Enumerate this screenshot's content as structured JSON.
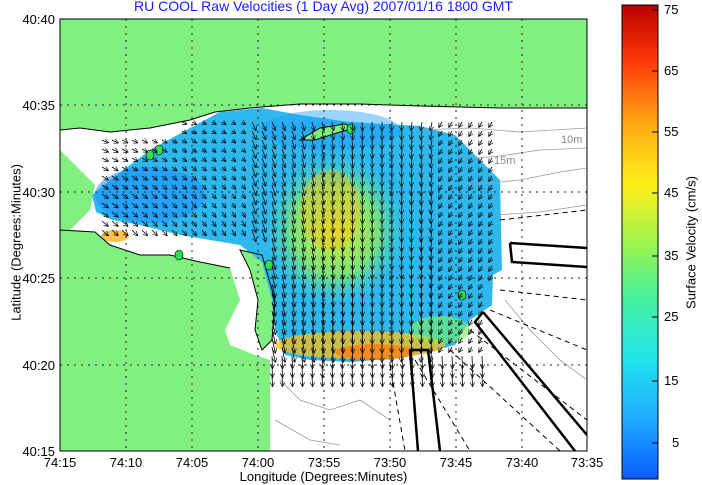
{
  "title": "RU COOL Raw Velocities (1 Day Avg) 2007/01/16 1800 GMT",
  "xlabel": "Longitude (Degrees:Minutes)",
  "ylabel": "Latitude (Degrees:Minutes)",
  "colorbar": {
    "label": "Surface Velocity (cm/s)",
    "ticks": [
      "75",
      "65",
      "55",
      "45",
      "35",
      "25",
      "15",
      "5"
    ],
    "stops": [
      "#0a5cff",
      "#1ea7ff",
      "#22e3ee",
      "#44f0a0",
      "#9ef44c",
      "#fff01a",
      "#ffa814",
      "#ff3a0a",
      "#b80000"
    ]
  },
  "map": {
    "x_ticks": [
      "74:15",
      "74:10",
      "74:05",
      "74:00",
      "73:55",
      "73:50",
      "73:45",
      "73:40",
      "73:35"
    ],
    "y_ticks": [
      "40:40",
      "40:35",
      "40:30",
      "40:25",
      "40:20",
      "40:15"
    ],
    "contour_labels": [
      "10m",
      "15m"
    ],
    "land_color": "#80f080",
    "sea_color": "#ffffff"
  }
}
